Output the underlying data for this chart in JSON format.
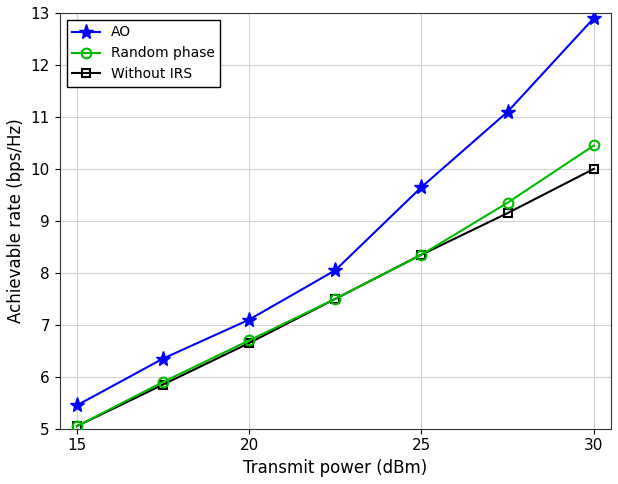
{
  "x_ao": [
    15,
    17.5,
    20,
    22.5,
    25,
    27.5,
    30
  ],
  "y_ao": [
    5.45,
    6.35,
    7.1,
    8.05,
    9.65,
    11.1,
    12.9
  ],
  "x_random": [
    15,
    17.5,
    20,
    22.5,
    25,
    27.5,
    30
  ],
  "y_random": [
    5.05,
    5.9,
    6.7,
    7.5,
    8.35,
    9.35,
    10.45
  ],
  "x_noIRS": [
    15,
    17.5,
    20,
    22.5,
    25,
    27.5,
    30
  ],
  "y_noIRS": [
    5.05,
    5.85,
    6.65,
    7.5,
    8.35,
    9.15,
    10.0
  ],
  "color_ao": "#0000ff",
  "color_random": "#00bb00",
  "color_noIRS": "#000000",
  "xlabel": "Transmit power (dBm)",
  "ylabel": "Achievable rate (bps/Hz)",
  "legend_ao": "AO",
  "legend_random": "Random phase",
  "legend_noIRS": "Without IRS",
  "xlim": [
    14.5,
    30.5
  ],
  "ylim": [
    5.0,
    13.0
  ],
  "xticks": [
    15,
    20,
    25,
    30
  ],
  "yticks": [
    5,
    6,
    7,
    8,
    9,
    10,
    11,
    12,
    13
  ],
  "grid_color": "#d3d3d3",
  "background_color": "#ffffff",
  "linewidth": 1.5,
  "marker_size_ao": 11,
  "marker_size_random": 7,
  "marker_size_noIRS": 6
}
